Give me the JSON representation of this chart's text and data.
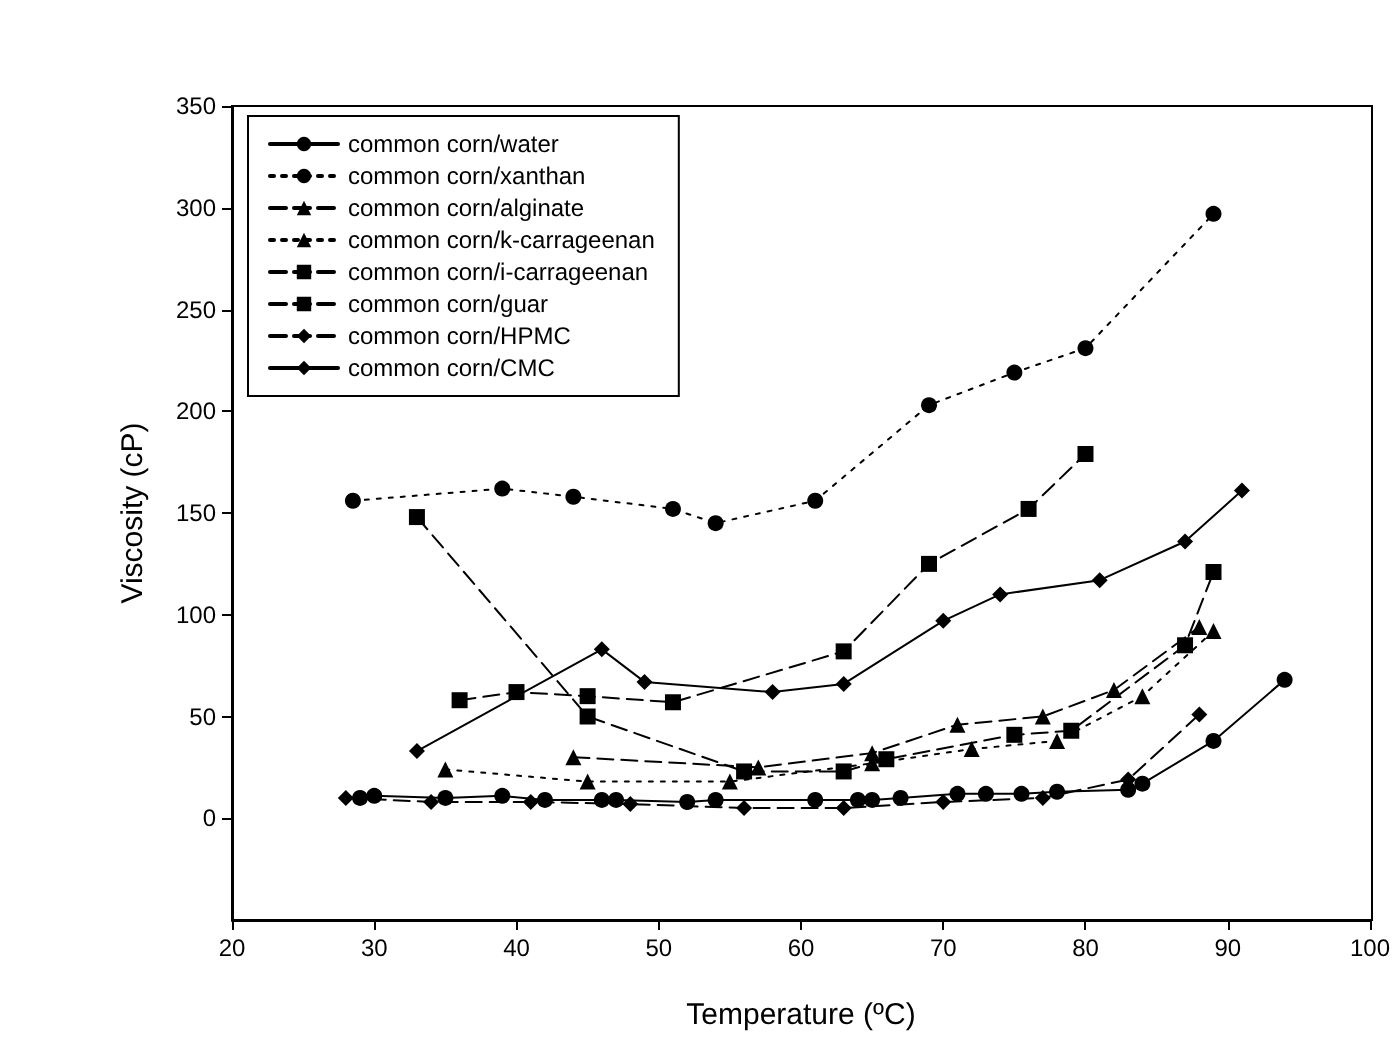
{
  "chart_data": {
    "type": "line",
    "xlabel": "Temperature (ºC)",
    "ylabel": "Viscosity (cP)",
    "xlim": [
      20,
      100
    ],
    "xticks": [
      20,
      30,
      40,
      50,
      60,
      70,
      80,
      90,
      100
    ],
    "ylim": [
      -50,
      350
    ],
    "yticks": [
      0,
      50,
      100,
      150,
      200,
      250,
      300,
      350
    ],
    "grid": false,
    "legend": "top left",
    "series": [
      {
        "name": "common corn/water",
        "color": "#000000",
        "marker": "circle",
        "line_style": "solid",
        "x": [
          29,
          30,
          35,
          39,
          42,
          46,
          47,
          52,
          54,
          61,
          64,
          65,
          67,
          71,
          73,
          75.5,
          78,
          83,
          84,
          89,
          94
        ],
        "values": [
          10,
          11,
          10,
          11,
          9,
          9,
          9,
          8,
          9,
          9,
          9,
          9,
          10,
          12,
          12,
          12,
          13,
          14,
          17,
          38,
          68
        ]
      },
      {
        "name": "common corn/xanthan",
        "color": "#000000",
        "marker": "circle",
        "line_style": "dotted",
        "x": [
          28.5,
          39,
          44,
          51,
          54,
          61,
          69,
          75,
          80,
          89
        ],
        "values": [
          156,
          162,
          158,
          152,
          145,
          156,
          203,
          219,
          231,
          297
        ]
      },
      {
        "name": "common corn/alginate",
        "color": "#000000",
        "marker": "triangle",
        "line_style": "dashed",
        "x": [
          44,
          57,
          65,
          71,
          77,
          82,
          88
        ],
        "values": [
          30,
          25,
          32,
          46,
          50,
          63,
          94
        ]
      },
      {
        "name": "common corn/k-carrageenan",
        "color": "#000000",
        "marker": "triangle",
        "line_style": "dotted",
        "x": [
          35,
          45,
          55,
          65,
          72,
          78,
          84,
          89
        ],
        "values": [
          24,
          18,
          18,
          27,
          34,
          38,
          60,
          92
        ]
      },
      {
        "name": "common corn/i-carrageenan",
        "color": "#000000",
        "marker": "square",
        "line_style": "dashed",
        "x": [
          33,
          45,
          56,
          63,
          66,
          75,
          79,
          87,
          89
        ],
        "values": [
          148,
          50,
          23,
          23,
          29,
          41,
          43,
          85,
          121
        ]
      },
      {
        "name": "common corn/guar",
        "color": "#000000",
        "marker": "square",
        "line_style": "dashed",
        "x": [
          36,
          40,
          45,
          51,
          63,
          69,
          76,
          80
        ],
        "values": [
          58,
          62,
          60,
          57,
          82,
          125,
          152,
          179
        ]
      },
      {
        "name": "common corn/HPMC",
        "color": "#000000",
        "marker": "diamond",
        "line_style": "dashed",
        "x": [
          28,
          34,
          41,
          48,
          56,
          63,
          70,
          77,
          83,
          88
        ],
        "values": [
          10,
          8,
          8,
          7,
          5,
          5,
          8,
          10,
          19,
          51
        ]
      },
      {
        "name": "common corn/CMC",
        "color": "#000000",
        "marker": "diamond",
        "line_style": "solid",
        "x": [
          33,
          46,
          49,
          58,
          63,
          70,
          74,
          81,
          87,
          91
        ],
        "values": [
          33,
          83,
          67,
          62,
          66,
          97,
          110,
          117,
          136,
          161
        ]
      }
    ]
  }
}
